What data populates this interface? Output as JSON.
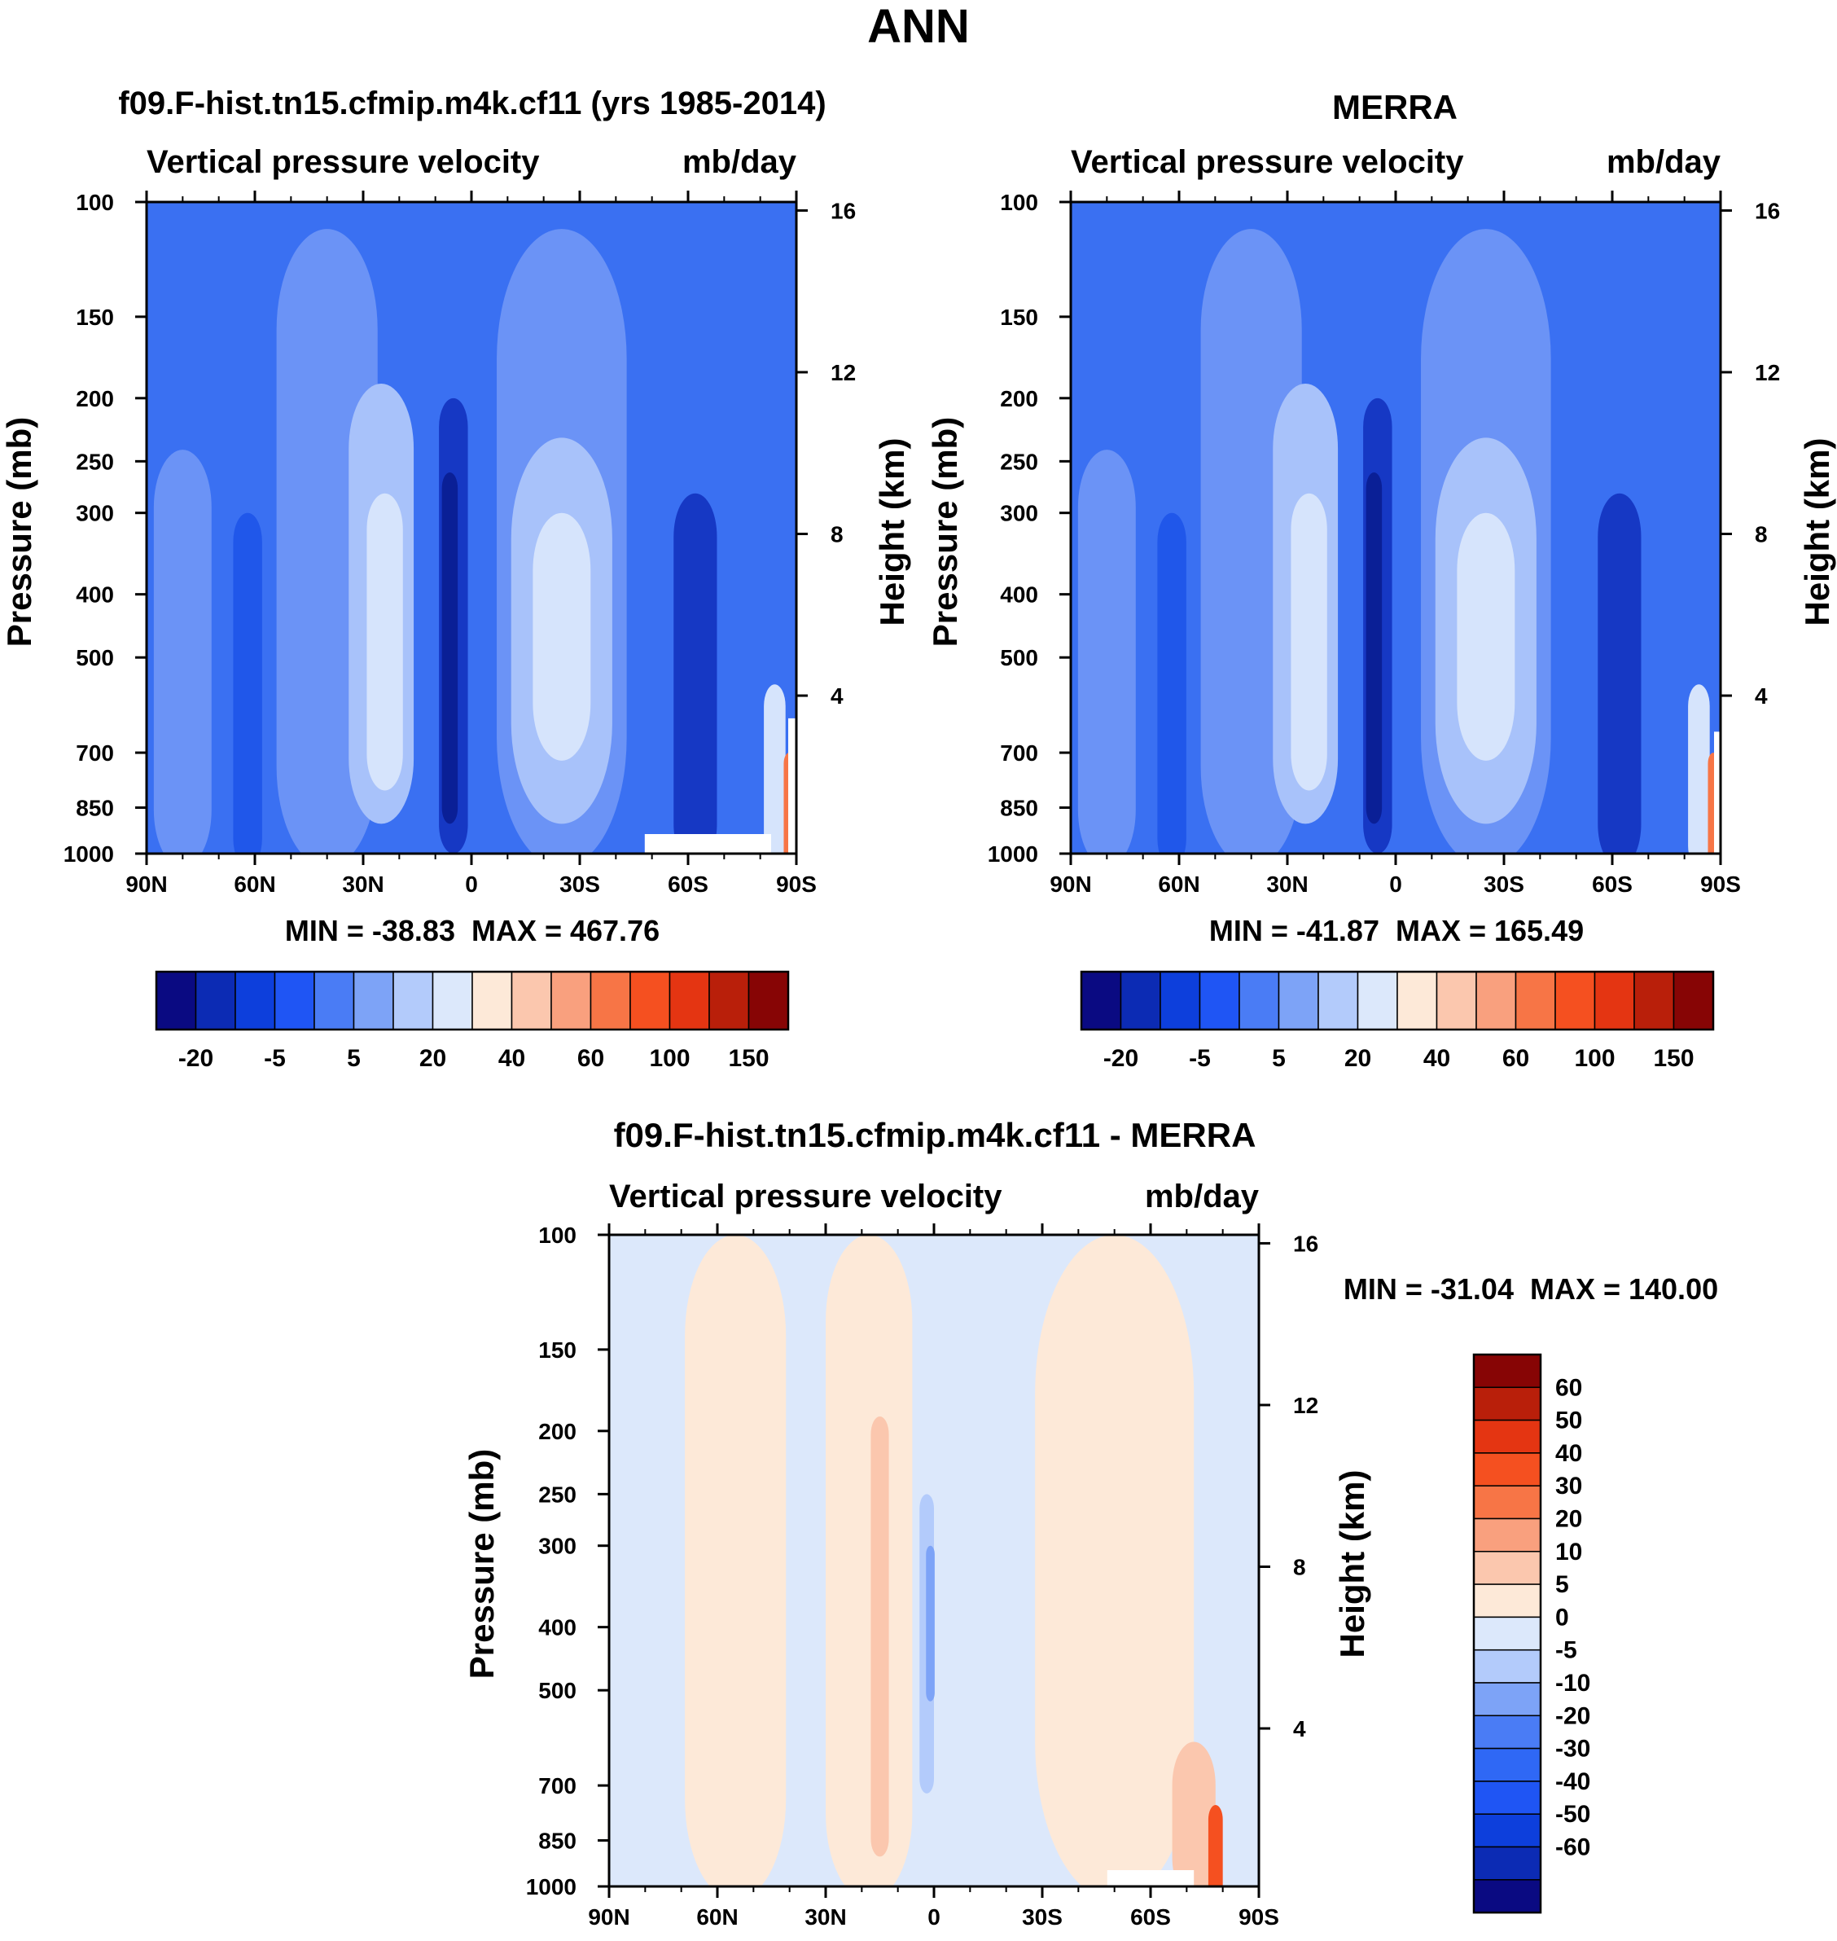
{
  "page_title": "ANN",
  "colors": {
    "abs_scale": [
      "#0a0a82",
      "#0c2bb4",
      "#0d3fdc",
      "#1f55f4",
      "#4a7cf5",
      "#7da3f7",
      "#b3cbfb",
      "#dce8fb",
      "#fde9d8",
      "#fbc7ae",
      "#f9a07e",
      "#f77546",
      "#f55020",
      "#e43512",
      "#b91f0a",
      "#870505"
    ],
    "diff_scale": [
      "#0a0a82",
      "#0c2bb4",
      "#0d3fdc",
      "#1f55f4",
      "#2f68f5",
      "#4a7cf5",
      "#7da3f7",
      "#b3cbfb",
      "#dce8fb",
      "#fde9d8",
      "#fbc7ae",
      "#f9a07e",
      "#f77546",
      "#f55020",
      "#e43512",
      "#b91f0a",
      "#870505"
    ],
    "fields": {
      "base": "#3a70f2",
      "low": "#2057ea",
      "mid": "#6b93f6",
      "light": "#a8c2fa",
      "pale": "#d6e4fc",
      "deep": "#1638c4",
      "deeper": "#0a1f96",
      "warm": "#f77546",
      "hot": "#c8280c",
      "diff_base": "#dce8fb",
      "diff_warm": "#fde9d8",
      "diff_warm2": "#fbc7ae",
      "diff_cool": "#b3cbfb",
      "diff_cool2": "#7da3f7",
      "diff_hot": "#f55020"
    }
  },
  "panels": [
    {
      "id": "model",
      "title": "f09.F-hist.tn15.cfmip.m4k.cf11 (yrs 1985-2014)",
      "left_label": "Vertical pressure velocity",
      "right_label": "mb/day",
      "y_axis_title": "Pressure (mb)",
      "y2_axis_title": "Height (km)",
      "minmax": "MIN = -38.83  MAX = 467.76",
      "colorbar_labels": [
        "-20",
        "-5",
        "5",
        "20",
        "40",
        "60",
        "100",
        "150"
      ]
    },
    {
      "id": "obs",
      "title": "MERRA",
      "left_label": "Vertical pressure velocity",
      "right_label": "mb/day",
      "y_axis_title": "Pressure (mb)",
      "y2_axis_title": "Height (km)",
      "minmax": "MIN = -41.87  MAX = 165.49",
      "colorbar_labels": [
        "-20",
        "-5",
        "5",
        "20",
        "40",
        "60",
        "100",
        "150"
      ]
    },
    {
      "id": "diff",
      "title": "f09.F-hist.tn15.cfmip.m4k.cf11 - MERRA",
      "left_label": "Vertical pressure velocity",
      "right_label": "mb/day",
      "y_axis_title": "Pressure (mb)",
      "y2_axis_title": "Height (km)",
      "minmax": "MIN = -31.04  MAX = 140.00",
      "colorbar_labels": [
        "60",
        "50",
        "40",
        "30",
        "20",
        "10",
        "5",
        "0",
        "-5",
        "-10",
        "-20",
        "-30",
        "-40",
        "-50",
        "-60"
      ]
    }
  ],
  "chart_data": [
    {
      "type": "heatmap",
      "title": "f09.F-hist.tn15.cfmip.m4k.cf11 (yrs 1985-2014)",
      "field": "Vertical pressure velocity",
      "units": "mb/day",
      "xlabel": "",
      "ylabel": "Pressure (mb)",
      "y2label": "Height (km)",
      "x_ticks": [
        "90N",
        "60N",
        "30N",
        "0",
        "30S",
        "60S",
        "90S"
      ],
      "x_range": [
        90,
        -90
      ],
      "y_ticks": [
        100,
        150,
        200,
        250,
        300,
        400,
        500,
        700,
        850,
        1000
      ],
      "y_range": [
        1000,
        100
      ],
      "y_scale": "log",
      "y2_ticks": [
        16,
        12,
        8,
        4
      ],
      "levels": [
        -20,
        -5,
        5,
        20,
        40,
        60,
        100,
        150
      ],
      "min": -38.83,
      "max": 467.76
    },
    {
      "type": "heatmap",
      "title": "MERRA",
      "field": "Vertical pressure velocity",
      "units": "mb/day",
      "xlabel": "",
      "ylabel": "Pressure (mb)",
      "y2label": "Height (km)",
      "x_ticks": [
        "90N",
        "60N",
        "30N",
        "0",
        "30S",
        "60S",
        "90S"
      ],
      "x_range": [
        90,
        -90
      ],
      "y_ticks": [
        100,
        150,
        200,
        250,
        300,
        400,
        500,
        700,
        850,
        1000
      ],
      "y_range": [
        1000,
        100
      ],
      "y_scale": "log",
      "y2_ticks": [
        16,
        12,
        8,
        4
      ],
      "levels": [
        -20,
        -5,
        5,
        20,
        40,
        60,
        100,
        150
      ],
      "min": -41.87,
      "max": 165.49
    },
    {
      "type": "heatmap",
      "title": "f09.F-hist.tn15.cfmip.m4k.cf11 - MERRA",
      "field": "Vertical pressure velocity",
      "units": "mb/day",
      "xlabel": "",
      "ylabel": "Pressure (mb)",
      "y2label": "Height (km)",
      "x_ticks": [
        "90N",
        "60N",
        "30N",
        "0",
        "30S",
        "60S",
        "90S"
      ],
      "x_range": [
        90,
        -90
      ],
      "y_ticks": [
        100,
        150,
        200,
        250,
        300,
        400,
        500,
        700,
        850,
        1000
      ],
      "y_range": [
        1000,
        100
      ],
      "y_scale": "log",
      "y2_ticks": [
        16,
        12,
        8,
        4
      ],
      "levels": [
        60,
        50,
        40,
        30,
        20,
        10,
        5,
        0,
        -5,
        -10,
        -20,
        -30,
        -40,
        -50,
        -60
      ],
      "min": -31.04,
      "max": 140.0
    }
  ]
}
